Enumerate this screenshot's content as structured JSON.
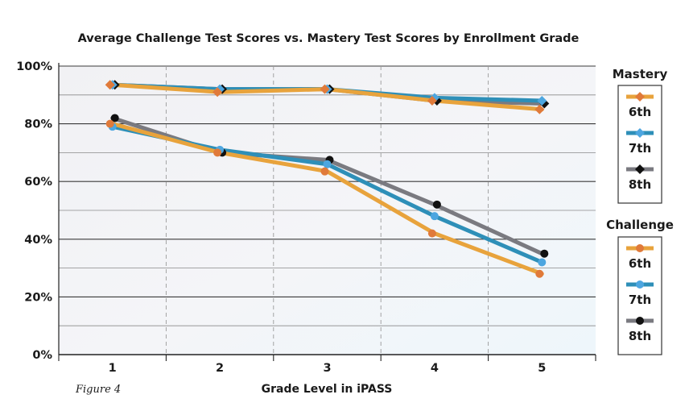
{
  "chart_data": {
    "type": "line",
    "title": "Average Challenge Test Scores vs. Mastery Test Scores by Enrollment Grade",
    "xlabel": "Grade Level in iPASS",
    "ylabel": "",
    "x": [
      1,
      2,
      3,
      4,
      5
    ],
    "x_tick_labels": [
      "1",
      "2",
      "3",
      "4",
      "5"
    ],
    "ylim": [
      0,
      100
    ],
    "y_ticks": [
      0,
      20,
      40,
      60,
      80,
      100
    ],
    "y_tick_labels": [
      "0%",
      "20%",
      "40%",
      "60%",
      "80%",
      "100%"
    ],
    "grid": true,
    "legend_position": "right",
    "caption": "Figure 4",
    "groups": [
      {
        "name": "Mastery",
        "marker": "diamond",
        "series": [
          {
            "name": "6th",
            "color": "#E8A33C",
            "marker_color": "#E07A3A",
            "values": [
              93.5,
              91,
              92,
              88,
              85
            ]
          },
          {
            "name": "7th",
            "color": "#2E8FB8",
            "marker_color": "#4DA6E0",
            "values": [
              93.5,
              92,
              92,
              89,
              88
            ]
          },
          {
            "name": "8th",
            "color": "#7A7A80",
            "marker_color": "#111111",
            "values": [
              93.5,
              92,
              92,
              88,
              87
            ]
          }
        ]
      },
      {
        "name": "Challenge",
        "marker": "circle",
        "series": [
          {
            "name": "6th",
            "color": "#E8A33C",
            "marker_color": "#E07A3A",
            "values": [
              80,
              70,
              63.5,
              42,
              28
            ]
          },
          {
            "name": "7th",
            "color": "#2E8FB8",
            "marker_color": "#4DA6E0",
            "values": [
              79,
              71,
              66,
              48,
              32
            ]
          },
          {
            "name": "8th",
            "color": "#7A7A80",
            "marker_color": "#111111",
            "values": [
              82,
              70,
              67.5,
              52,
              35
            ]
          }
        ]
      }
    ]
  }
}
